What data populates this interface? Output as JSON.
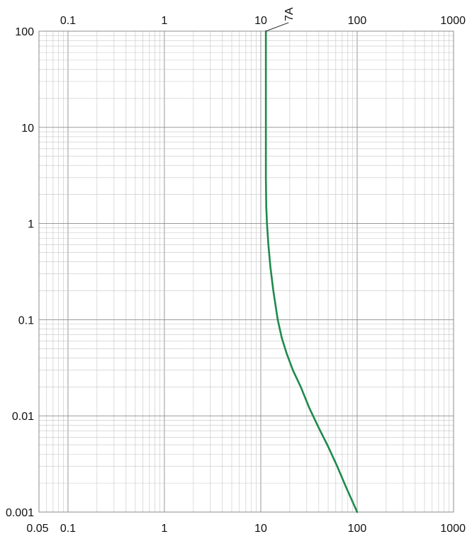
{
  "chart_data": {
    "type": "line",
    "x_scale": "log",
    "y_scale": "log",
    "xlim": [
      0.05,
      1000
    ],
    "ylim": [
      0.001,
      100
    ],
    "grid": true,
    "x_ticks_top": [
      "0.1",
      "1",
      "10",
      "100",
      "1000"
    ],
    "x_ticks_bottom": [
      "0.05",
      "0.1",
      "1",
      "10",
      "100",
      "1000"
    ],
    "y_ticks": [
      "100",
      "10",
      "1",
      "0.1",
      "0.01",
      "0.001"
    ],
    "series": [
      {
        "name": "7A",
        "color": "#1e8a4c",
        "points": [
          [
            11.3,
            100
          ],
          [
            11.3,
            30
          ],
          [
            11.3,
            10
          ],
          [
            11.3,
            3
          ],
          [
            11.4,
            1.5
          ],
          [
            11.6,
            1
          ],
          [
            12,
            0.6
          ],
          [
            12.6,
            0.35
          ],
          [
            13.5,
            0.2
          ],
          [
            15,
            0.1
          ],
          [
            16.5,
            0.065
          ],
          [
            18.5,
            0.045
          ],
          [
            21.5,
            0.03
          ],
          [
            26,
            0.02
          ],
          [
            32,
            0.012
          ],
          [
            40,
            0.0075
          ],
          [
            50,
            0.0048
          ],
          [
            62,
            0.003
          ],
          [
            77,
            0.0018
          ],
          [
            100,
            0.001
          ]
        ]
      }
    ]
  }
}
